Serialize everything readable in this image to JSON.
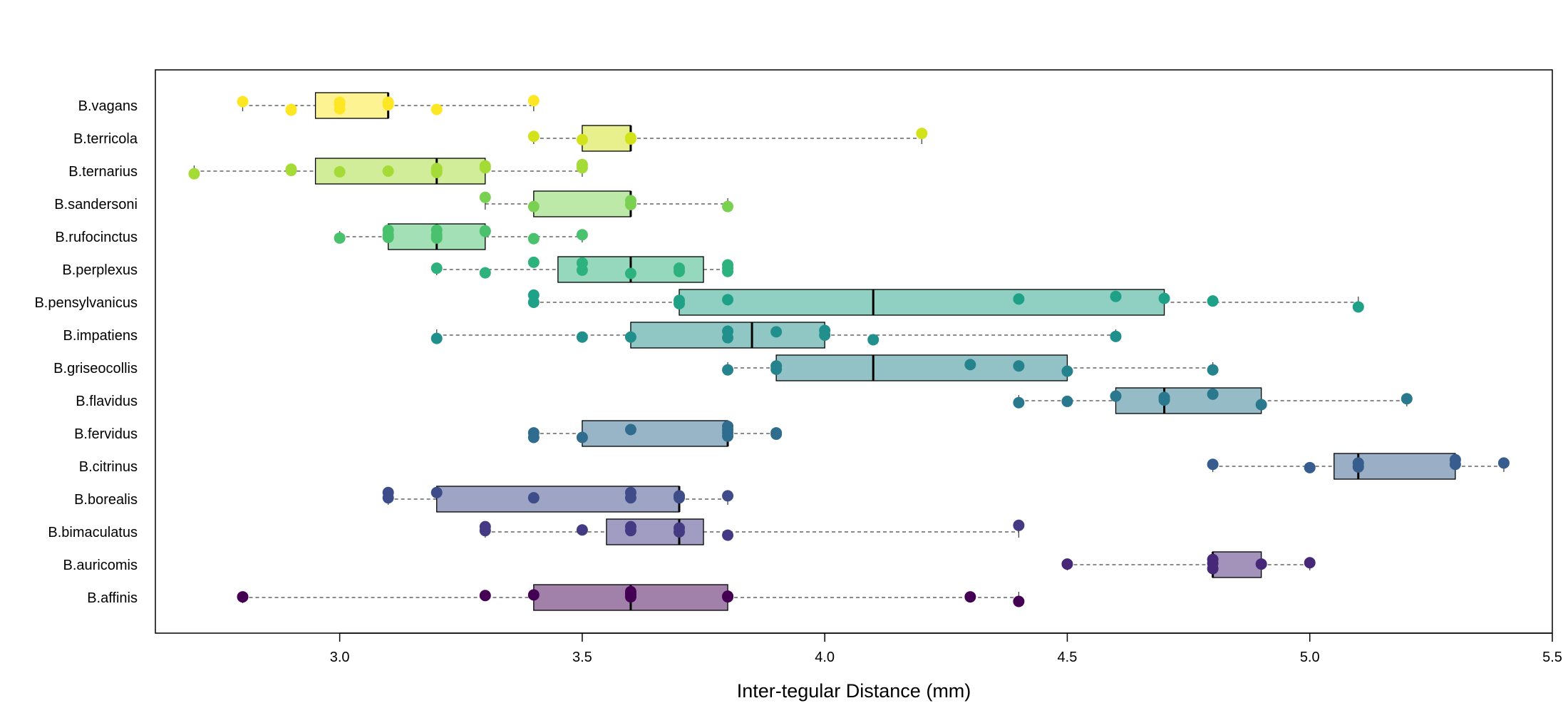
{
  "chart_data": {
    "type": "boxplot",
    "orientation": "horizontal",
    "xlabel": "Inter-tegular Distance (mm)",
    "xlim": [
      2.62,
      5.5
    ],
    "xticks": [
      3.0,
      3.5,
      4.0,
      4.5,
      5.0,
      5.5
    ],
    "xtick_labels": [
      "3.0",
      "3.5",
      "4.0",
      "4.5",
      "5.0",
      "5.5"
    ],
    "grid": false,
    "series": [
      {
        "name": "B.vagans",
        "color": "#FDE725",
        "whisker_low": 2.8,
        "q1": 2.95,
        "median": 3.1,
        "q3": 3.1,
        "whisker_high": 3.4,
        "points": [
          [
            2.8,
            0.12
          ],
          [
            2.9,
            -0.12
          ],
          [
            2.9,
            -0.14
          ],
          [
            3.0,
            0.04
          ],
          [
            3.0,
            -0.1
          ],
          [
            3.0,
            0.1
          ],
          [
            3.1,
            0.08
          ],
          [
            3.1,
            0.02
          ],
          [
            3.1,
            0.1
          ],
          [
            3.2,
            -0.12
          ],
          [
            3.4,
            0.15
          ]
        ]
      },
      {
        "name": "B.terricola",
        "color": "#D2E21B",
        "whisker_low": 3.4,
        "q1": 3.5,
        "median": 3.6,
        "q3": 3.6,
        "whisker_high": 4.2,
        "points": [
          [
            3.4,
            0.06
          ],
          [
            3.5,
            -0.04
          ],
          [
            3.6,
            0.02
          ],
          [
            3.6,
            -0.02
          ],
          [
            4.2,
            0.15
          ]
        ]
      },
      {
        "name": "B.ternarius",
        "color": "#A5DB36",
        "whisker_low": 2.7,
        "q1": 2.95,
        "median": 3.2,
        "q3": 3.3,
        "whisker_high": 3.5,
        "points": [
          [
            2.7,
            -0.08
          ],
          [
            2.9,
            0.06
          ],
          [
            2.9,
            0.02
          ],
          [
            3.0,
            -0.02
          ],
          [
            3.1,
            0.0
          ],
          [
            3.2,
            0.08
          ],
          [
            3.2,
            -0.04
          ],
          [
            3.2,
            0.02
          ],
          [
            3.3,
            0.16
          ],
          [
            3.3,
            0.1
          ],
          [
            3.5,
            0.2
          ],
          [
            3.5,
            0.1
          ]
        ]
      },
      {
        "name": "B.sandersoni",
        "color": "#7AD151",
        "whisker_low": 3.3,
        "q1": 3.4,
        "median": 3.6,
        "q3": 3.6,
        "whisker_high": 3.8,
        "points": [
          [
            3.3,
            0.2
          ],
          [
            3.4,
            -0.08
          ],
          [
            3.6,
            0.1
          ],
          [
            3.6,
            -0.02
          ],
          [
            3.8,
            -0.08
          ]
        ]
      },
      {
        "name": "B.rufocinctus",
        "color": "#4AC16D",
        "whisker_low": 3.0,
        "q1": 3.1,
        "median": 3.2,
        "q3": 3.3,
        "whisker_high": 3.5,
        "points": [
          [
            3.0,
            -0.04
          ],
          [
            3.1,
            0.2
          ],
          [
            3.1,
            0.06
          ],
          [
            3.1,
            -0.02
          ],
          [
            3.2,
            0.2
          ],
          [
            3.2,
            0.06
          ],
          [
            3.2,
            -0.04
          ],
          [
            3.3,
            0.18
          ],
          [
            3.3,
            0.16
          ],
          [
            3.4,
            -0.06
          ],
          [
            3.5,
            0.06
          ]
        ]
      },
      {
        "name": "B.perplexus",
        "color": "#2DB27D",
        "whisker_low": 3.2,
        "q1": 3.45,
        "median": 3.6,
        "q3": 3.75,
        "whisker_high": 3.8,
        "points": [
          [
            3.2,
            0.04
          ],
          [
            3.3,
            -0.1
          ],
          [
            3.4,
            0.22
          ],
          [
            3.5,
            0.2
          ],
          [
            3.5,
            -0.02
          ],
          [
            3.6,
            -0.12
          ],
          [
            3.7,
            0.04
          ],
          [
            3.7,
            -0.06
          ],
          [
            3.8,
            0.14
          ],
          [
            3.8,
            0.04
          ],
          [
            3.8,
            -0.06
          ]
        ]
      },
      {
        "name": "B.pensylvanicus",
        "color": "#1FA187",
        "whisker_low": 3.4,
        "q1": 3.7,
        "median": 4.1,
        "q3": 4.7,
        "whisker_high": 5.1,
        "points": [
          [
            3.4,
            0.22
          ],
          [
            3.4,
            0.0
          ],
          [
            3.7,
            0.06
          ],
          [
            3.7,
            -0.04
          ],
          [
            3.8,
            0.08
          ],
          [
            4.4,
            0.1
          ],
          [
            4.6,
            0.18
          ],
          [
            4.7,
            0.12
          ],
          [
            4.8,
            0.04
          ],
          [
            5.1,
            -0.14
          ]
        ]
      },
      {
        "name": "B.impatiens",
        "color": "#21908C",
        "whisker_low": 3.2,
        "q1": 3.6,
        "median": 3.85,
        "q3": 4.0,
        "whisker_high": 4.6,
        "points": [
          [
            3.2,
            -0.1
          ],
          [
            3.5,
            -0.06
          ],
          [
            3.6,
            -0.06
          ],
          [
            3.8,
            0.12
          ],
          [
            3.8,
            -0.08
          ],
          [
            3.9,
            0.1
          ],
          [
            4.0,
            0.14
          ],
          [
            4.0,
            0.0
          ],
          [
            4.1,
            -0.14
          ],
          [
            4.6,
            -0.04
          ]
        ]
      },
      {
        "name": "B.griseocollis",
        "color": "#25838E",
        "whisker_low": 3.8,
        "q1": 3.9,
        "median": 4.1,
        "q3": 4.5,
        "whisker_high": 4.8,
        "points": [
          [
            3.8,
            -0.06
          ],
          [
            3.9,
            0.06
          ],
          [
            3.9,
            -0.04
          ],
          [
            4.3,
            0.1
          ],
          [
            4.4,
            0.06
          ],
          [
            4.5,
            -0.1
          ],
          [
            4.8,
            -0.06
          ]
        ]
      },
      {
        "name": "B.flavidus",
        "color": "#2A788E",
        "whisker_low": 4.4,
        "q1": 4.6,
        "median": 4.7,
        "q3": 4.9,
        "whisker_high": 5.2,
        "points": [
          [
            4.4,
            -0.06
          ],
          [
            4.5,
            -0.02
          ],
          [
            4.6,
            0.14
          ],
          [
            4.7,
            0.1
          ],
          [
            4.7,
            0.02
          ],
          [
            4.8,
            0.2
          ],
          [
            4.9,
            -0.12
          ],
          [
            5.2,
            0.06
          ]
        ]
      },
      {
        "name": "B.fervidus",
        "color": "#2F6C8E",
        "whisker_low": 3.4,
        "q1": 3.5,
        "median": 3.8,
        "q3": 3.8,
        "whisker_high": 3.9,
        "points": [
          [
            3.4,
            0.02
          ],
          [
            3.4,
            -0.12
          ],
          [
            3.5,
            -0.12
          ],
          [
            3.6,
            0.12
          ],
          [
            3.8,
            0.22
          ],
          [
            3.8,
            0.12
          ],
          [
            3.8,
            0.02
          ],
          [
            3.8,
            -0.08
          ],
          [
            3.9,
            0.02
          ],
          [
            3.9,
            -0.02
          ]
        ]
      },
      {
        "name": "B.citrinus",
        "color": "#365D8D",
        "whisker_low": 4.8,
        "q1": 5.05,
        "median": 5.1,
        "q3": 5.3,
        "whisker_high": 5.4,
        "points": [
          [
            4.8,
            0.06
          ],
          [
            5.0,
            -0.04
          ],
          [
            5.1,
            0.1
          ],
          [
            5.1,
            -0.02
          ],
          [
            5.3,
            0.2
          ],
          [
            5.3,
            0.06
          ],
          [
            5.4,
            0.1
          ]
        ]
      },
      {
        "name": "B.borealis",
        "color": "#3E4C8A",
        "whisker_low": 3.1,
        "q1": 3.2,
        "median": 3.7,
        "q3": 3.7,
        "whisker_high": 3.8,
        "points": [
          [
            3.1,
            0.2
          ],
          [
            3.1,
            0.04
          ],
          [
            3.2,
            0.2
          ],
          [
            3.4,
            0.04
          ],
          [
            3.6,
            0.2
          ],
          [
            3.6,
            0.04
          ],
          [
            3.7,
            0.1
          ],
          [
            3.7,
            0.04
          ],
          [
            3.8,
            0.1
          ]
        ]
      },
      {
        "name": "B.bimaculatus",
        "color": "#443A83",
        "whisker_low": 3.3,
        "q1": 3.55,
        "median": 3.7,
        "q3": 3.75,
        "whisker_high": 4.4,
        "points": [
          [
            3.3,
            0.16
          ],
          [
            3.3,
            0.04
          ],
          [
            3.5,
            0.06
          ],
          [
            3.6,
            0.16
          ],
          [
            3.6,
            0.04
          ],
          [
            3.7,
            0.12
          ],
          [
            3.7,
            0.0
          ],
          [
            3.8,
            -0.1
          ],
          [
            4.4,
            0.2
          ]
        ]
      },
      {
        "name": "B.auricomis",
        "color": "#472878",
        "whisker_low": 4.5,
        "q1": 4.8,
        "median": 4.8,
        "q3": 4.9,
        "whisker_high": 5.0,
        "points": [
          [
            4.5,
            0.02
          ],
          [
            4.8,
            0.16
          ],
          [
            4.8,
            0.04
          ],
          [
            4.8,
            -0.12
          ],
          [
            4.9,
            0.02
          ],
          [
            5.0,
            0.06
          ]
        ]
      },
      {
        "name": "B.affinis",
        "color": "#440154",
        "whisker_low": 2.8,
        "q1": 3.4,
        "median": 3.6,
        "q3": 3.8,
        "whisker_high": 4.4,
        "points": [
          [
            2.8,
            0.02
          ],
          [
            3.3,
            0.06
          ],
          [
            3.4,
            0.08
          ],
          [
            3.6,
            0.18
          ],
          [
            3.6,
            0.1
          ],
          [
            3.6,
            0.02
          ],
          [
            3.8,
            0.04
          ],
          [
            3.8,
            0.02
          ],
          [
            4.3,
            0.02
          ],
          [
            4.4,
            -0.12
          ]
        ]
      }
    ]
  }
}
